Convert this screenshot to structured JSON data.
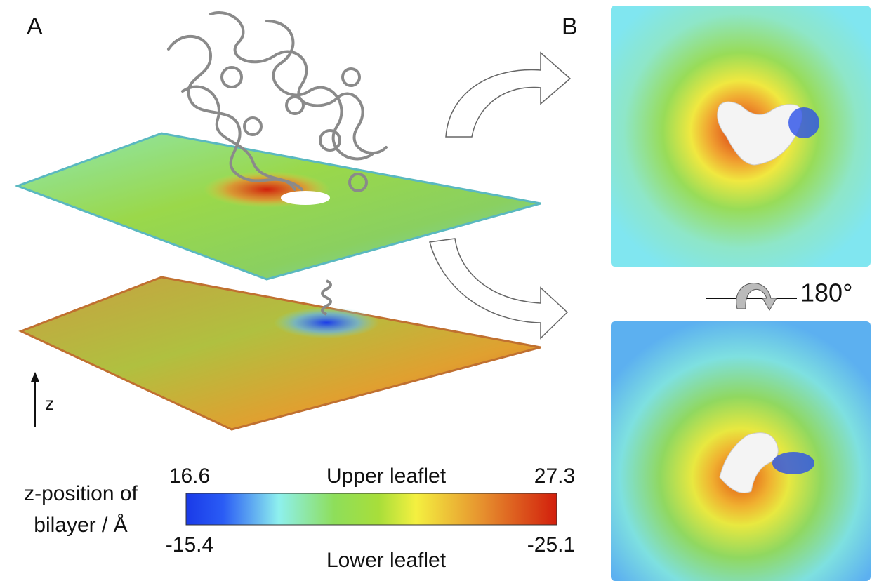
{
  "panels": {
    "a": "A",
    "b": "B"
  },
  "axis_label": "z",
  "rotation": "180°",
  "colorbar": {
    "title_line1": "z-position of",
    "title_line2": "bilayer / Å",
    "upper_label": "Upper leaflet",
    "upper_min": "16.6",
    "upper_max": "27.3",
    "lower_label": "Lower leaflet",
    "lower_min": "-15.4",
    "lower_max": "-25.1"
  }
}
